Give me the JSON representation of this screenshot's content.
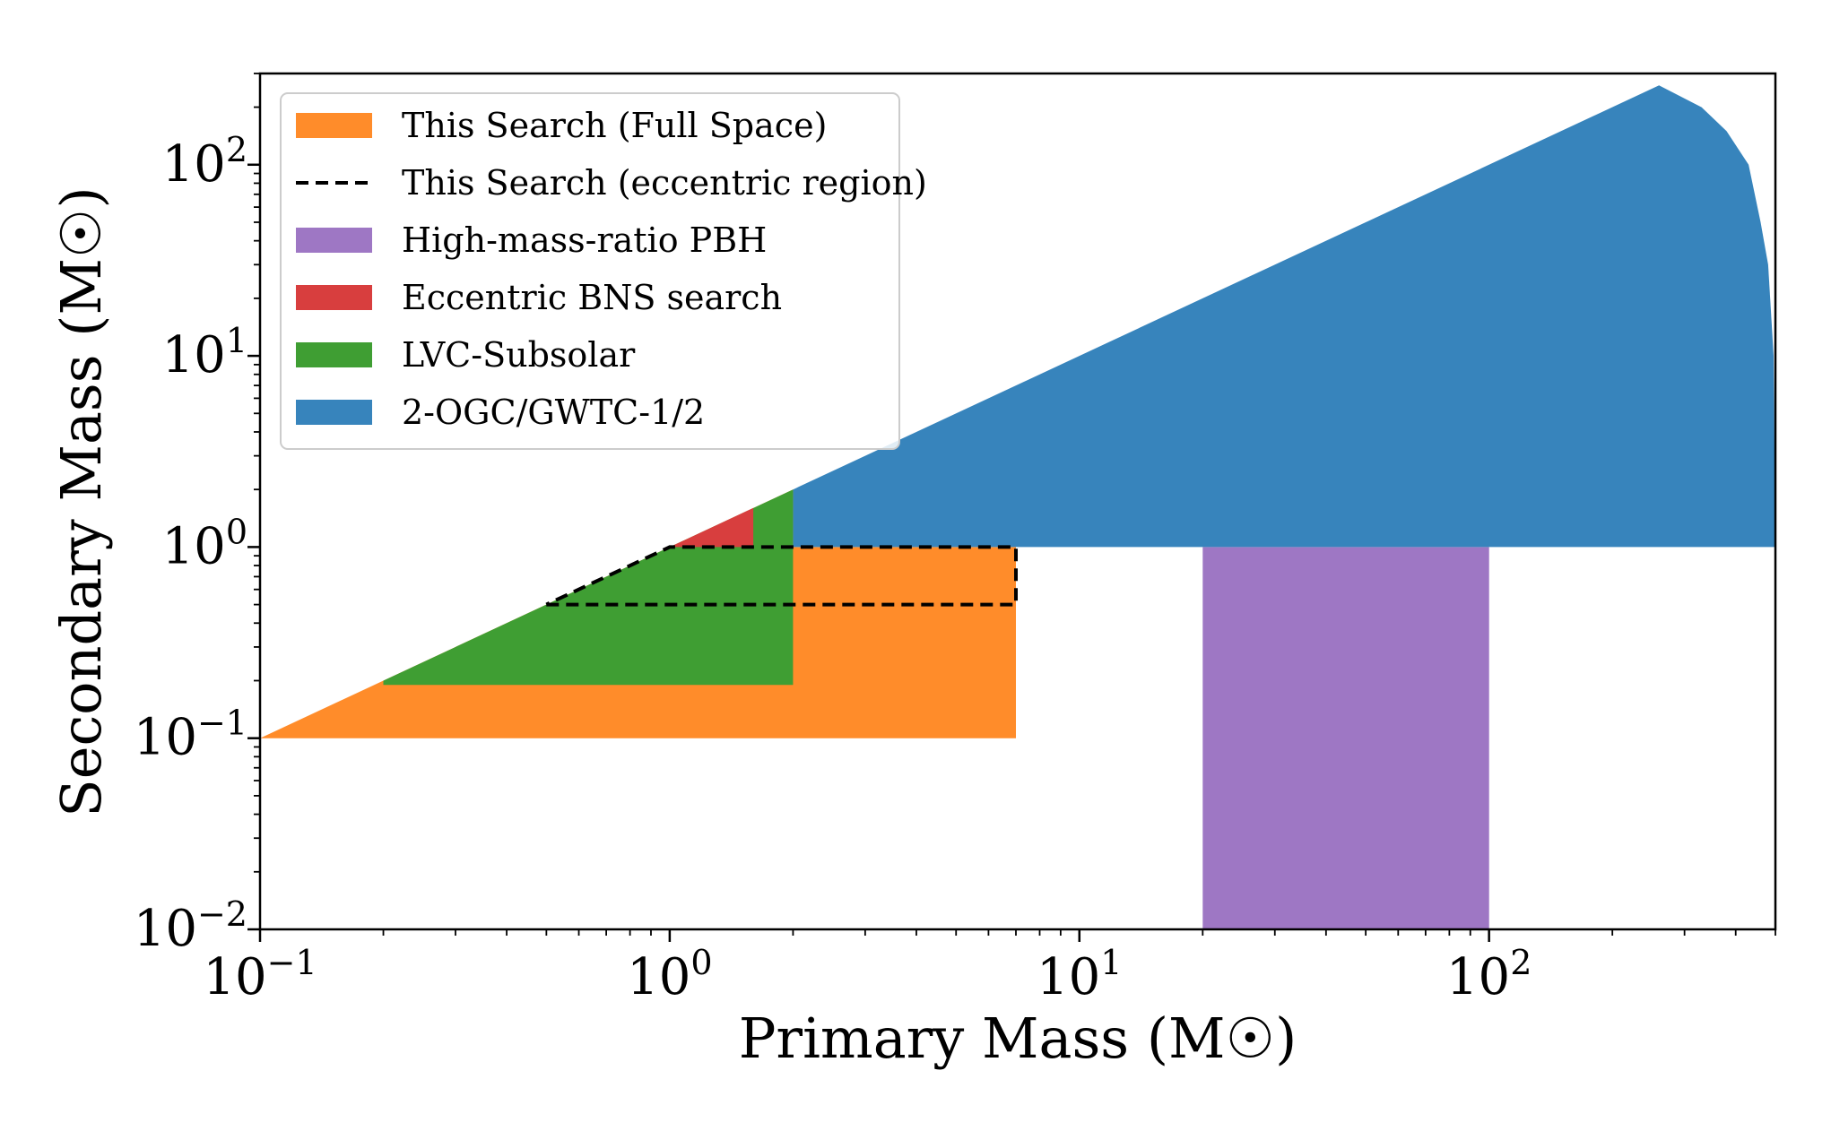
{
  "chart_data": {
    "type": "area",
    "xlabel": "Primary Mass (M☉)",
    "ylabel": "Secondary Mass (M☉)",
    "xscale": "log",
    "yscale": "log",
    "xlim": [
      0.1,
      500
    ],
    "ylim": [
      0.01,
      300
    ],
    "x_ticks": [
      {
        "value": 0.1,
        "base": "10",
        "exp": "−1"
      },
      {
        "value": 1,
        "base": "10",
        "exp": "0"
      },
      {
        "value": 10,
        "base": "10",
        "exp": "1"
      },
      {
        "value": 100,
        "base": "10",
        "exp": "2"
      }
    ],
    "y_ticks": [
      {
        "value": 0.01,
        "base": "10",
        "exp": "−2"
      },
      {
        "value": 0.1,
        "base": "10",
        "exp": "−1"
      },
      {
        "value": 1,
        "base": "10",
        "exp": "0"
      },
      {
        "value": 10,
        "base": "10",
        "exp": "1"
      },
      {
        "value": 100,
        "base": "10",
        "exp": "2"
      }
    ],
    "legend_position": "top-left",
    "grid": false,
    "series": [
      {
        "name": "This Search (Full Space)",
        "style": "fill",
        "color": "#ff8c2a",
        "points": [
          [
            0.1,
            0.1
          ],
          [
            7,
            0.1
          ],
          [
            7,
            1
          ],
          [
            2,
            1
          ],
          [
            2,
            2
          ],
          [
            1,
            1
          ],
          [
            0.1,
            0.1
          ]
        ]
      },
      {
        "name": "High-mass-ratio PBH",
        "style": "fill",
        "color": "#9e77c4",
        "points": [
          [
            20,
            0.01
          ],
          [
            100,
            0.01
          ],
          [
            100,
            1
          ],
          [
            20,
            1
          ]
        ]
      },
      {
        "name": "2-OGC/GWTC-1/2",
        "style": "fill",
        "color": "#3784bc",
        "points": [
          [
            2,
            1
          ],
          [
            500,
            1
          ],
          [
            495,
            10
          ],
          [
            480,
            30
          ],
          [
            460,
            50
          ],
          [
            430,
            100
          ],
          [
            380,
            150
          ],
          [
            330,
            200
          ],
          [
            260,
            260
          ],
          [
            2,
            2
          ]
        ]
      },
      {
        "name": "LVC-Subsolar",
        "style": "fill",
        "color": "#3f9e33",
        "points": [
          [
            0.2,
            0.19
          ],
          [
            2,
            0.19
          ],
          [
            2,
            2
          ],
          [
            0.2,
            0.2
          ]
        ]
      },
      {
        "name": "Eccentric BNS search",
        "style": "fill",
        "color": "#d83e3e",
        "points": [
          [
            1,
            1
          ],
          [
            1.6,
            1
          ],
          [
            1.6,
            1.6
          ]
        ]
      },
      {
        "name": "This Search (eccentric region)",
        "style": "dashed",
        "color": "#000000",
        "points": [
          [
            0.5,
            0.5
          ],
          [
            7,
            0.5
          ],
          [
            7,
            1
          ],
          [
            1,
            1
          ],
          [
            0.5,
            0.5
          ]
        ]
      }
    ],
    "legend_order": [
      "This Search (Full Space)",
      "This Search (eccentric region)",
      "High-mass-ratio PBH",
      "Eccentric BNS search",
      "LVC-Subsolar",
      "2-OGC/GWTC-1/2"
    ]
  }
}
